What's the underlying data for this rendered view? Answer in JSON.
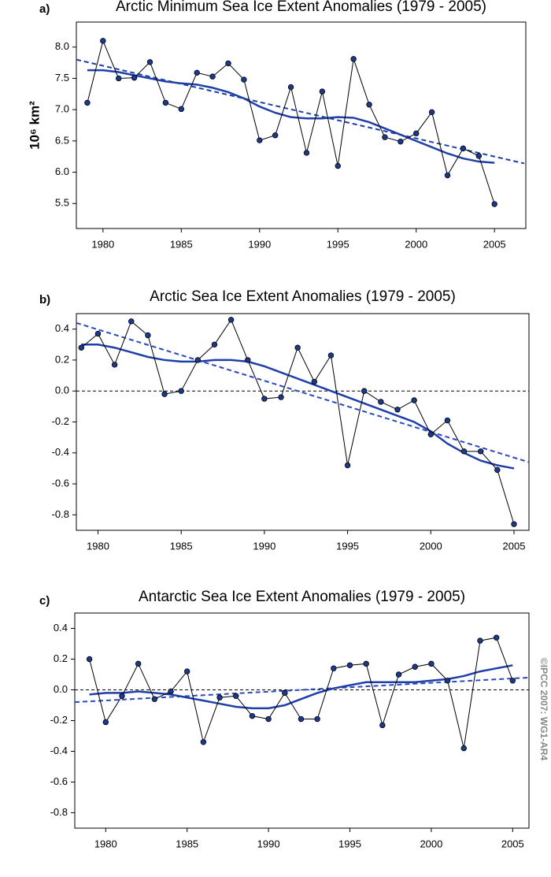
{
  "chart_data": [
    {
      "type": "line",
      "panel_label": "a)",
      "title": "Arctic Minimum Sea Ice Extent Anomalies (1979 - 2005)",
      "ylabel": "10⁶ km²",
      "x": [
        1979,
        1980,
        1981,
        1982,
        1983,
        1984,
        1985,
        1986,
        1987,
        1988,
        1989,
        1990,
        1991,
        1992,
        1993,
        1994,
        1995,
        1996,
        1997,
        1998,
        1999,
        2000,
        2001,
        2002,
        2003,
        2004,
        2005
      ],
      "series": [
        {
          "color": "#1c3a8c",
          "line_color": "#000000",
          "values": [
            7.11,
            8.1,
            7.5,
            7.51,
            7.76,
            7.11,
            7.01,
            7.59,
            7.53,
            7.74,
            7.48,
            6.51,
            6.59,
            7.36,
            6.31,
            7.29,
            6.1,
            7.81,
            7.08,
            6.56,
            6.49,
            6.62,
            6.96,
            5.95,
            6.38,
            6.26,
            5.49
          ]
        },
        {
          "color": "#1f3fa8",
          "values": [
            7.63,
            7.63,
            7.6,
            7.55,
            7.5,
            7.45,
            7.42,
            7.4,
            7.35,
            7.28,
            7.18,
            7.05,
            6.95,
            6.88,
            6.86,
            6.86,
            6.88,
            6.87,
            6.8,
            6.7,
            6.6,
            6.5,
            6.4,
            6.3,
            6.22,
            6.17,
            6.15
          ]
        }
      ],
      "trend": {
        "color": "#1f3fa8",
        "x": [
          1978.3,
          2006.9
        ],
        "values": [
          7.8,
          6.14
        ]
      },
      "xlim": [
        1978.3,
        2007
      ],
      "ylim": [
        5.1,
        8.4
      ],
      "xticks": [
        1980,
        1985,
        1990,
        1995,
        2000,
        2005
      ],
      "yticks": [
        5.5,
        {
          "value": 6.0,
          "label": "6.0"
        },
        6.5,
        {
          "value": 7.0,
          "label": "7.0"
        },
        7.5,
        {
          "value": 8.0,
          "label": "8.0"
        }
      ]
    },
    {
      "type": "line",
      "panel_label": "b)",
      "title": "Arctic Sea Ice Extent Anomalies (1979 - 2005)",
      "x": [
        1979,
        1980,
        1981,
        1982,
        1983,
        1984,
        1985,
        1986,
        1987,
        1988,
        1989,
        1990,
        1991,
        1992,
        1993,
        1994,
        1995,
        1996,
        1997,
        1998,
        1999,
        2000,
        2001,
        2002,
        2003,
        2004,
        2005
      ],
      "series": [
        {
          "color": "#1c3a8c",
          "line_color": "#000000",
          "values": [
            0.28,
            0.37,
            0.17,
            0.45,
            0.36,
            -0.02,
            0.0,
            0.2,
            0.3,
            0.46,
            0.2,
            -0.05,
            -0.04,
            0.28,
            0.06,
            0.23,
            -0.48,
            0.0,
            -0.07,
            -0.12,
            -0.06,
            -0.28,
            -0.19,
            -0.39,
            -0.39,
            -0.51,
            -0.86
          ]
        },
        {
          "color": "#1f3fa8",
          "values": [
            0.3,
            0.3,
            0.28,
            0.25,
            0.22,
            0.2,
            0.19,
            0.19,
            0.2,
            0.2,
            0.19,
            0.16,
            0.12,
            0.08,
            0.04,
            0.0,
            -0.04,
            -0.08,
            -0.12,
            -0.16,
            -0.2,
            -0.26,
            -0.34,
            -0.4,
            -0.45,
            -0.48,
            -0.5
          ]
        }
      ],
      "trend": {
        "color": "#2a48c0",
        "x": [
          1978.7,
          2005.9
        ],
        "values": [
          0.44,
          -0.46
        ]
      },
      "hline": 0,
      "xlim": [
        1978.7,
        2005.9
      ],
      "ylim": [
        -0.9,
        0.5
      ],
      "xticks": [
        1980,
        1985,
        1990,
        1995,
        2000,
        2005
      ],
      "yticks": [
        -0.8,
        -0.6,
        -0.4,
        -0.2,
        {
          "value": 0,
          "label": "0.0"
        },
        0.2,
        0.4
      ]
    },
    {
      "type": "line",
      "panel_label": "c)",
      "title": "Antarctic Sea Ice Extent Anomalies (1979 - 2005)",
      "x": [
        1979,
        1980,
        1981,
        1982,
        1983,
        1984,
        1985,
        1986,
        1987,
        1988,
        1989,
        1990,
        1991,
        1992,
        1993,
        1994,
        1995,
        1996,
        1997,
        1998,
        1999,
        2000,
        2001,
        2002,
        2003,
        2004,
        2005
      ],
      "series": [
        {
          "color": "#1c3a8c",
          "line_color": "#000000",
          "values": [
            0.2,
            -0.21,
            -0.04,
            0.17,
            -0.06,
            -0.01,
            0.12,
            -0.34,
            -0.05,
            -0.04,
            -0.17,
            -0.19,
            -0.02,
            -0.19,
            -0.19,
            0.14,
            0.16,
            0.17,
            -0.23,
            0.1,
            0.15,
            0.17,
            0.06,
            -0.38,
            0.32,
            0.34,
            0.06
          ]
        },
        {
          "color": "#1f3fa8",
          "values": [
            -0.03,
            -0.02,
            -0.02,
            -0.01,
            -0.02,
            -0.03,
            -0.05,
            -0.07,
            -0.09,
            -0.11,
            -0.12,
            -0.12,
            -0.1,
            -0.06,
            -0.02,
            0.01,
            0.03,
            0.05,
            0.05,
            0.05,
            0.05,
            0.06,
            0.07,
            0.09,
            0.12,
            0.14,
            0.16
          ]
        }
      ],
      "trend": {
        "color": "#2a48c0",
        "x": [
          1978.1,
          2006
        ],
        "values": [
          -0.08,
          0.08
        ]
      },
      "hline": 0,
      "xlim": [
        1978.1,
        2006
      ],
      "ylim": [
        -0.9,
        0.5
      ],
      "xticks": [
        1980,
        1985,
        1990,
        1995,
        2000,
        2005
      ],
      "yticks": [
        -0.8,
        -0.6,
        -0.4,
        -0.2,
        {
          "value": 0,
          "label": "0.0"
        },
        0.2,
        0.4
      ]
    }
  ],
  "credit": "©IPCC 2007: WG1-AR4"
}
